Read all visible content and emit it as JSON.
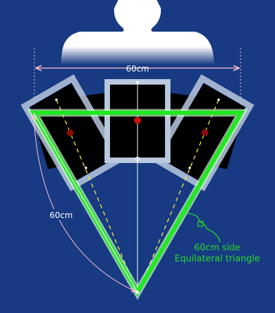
{
  "diagram": {
    "width_label": "60cm",
    "side_label": "60cm",
    "note_line1": "60cm side",
    "note_line2": "Equilateral triangle"
  },
  "colors": {
    "background": "#173a82",
    "triangle": "#22e822",
    "triangle_glow": "#c8ffc8",
    "dashed_center": "#ffef3a",
    "dimension": "#ffc2d4",
    "monitor_screen": "#000000",
    "monitor_frame": "#b8c8de",
    "center_point": "#d01010",
    "annotation_text": "#2ad82a",
    "label_text": "#ffffff"
  }
}
